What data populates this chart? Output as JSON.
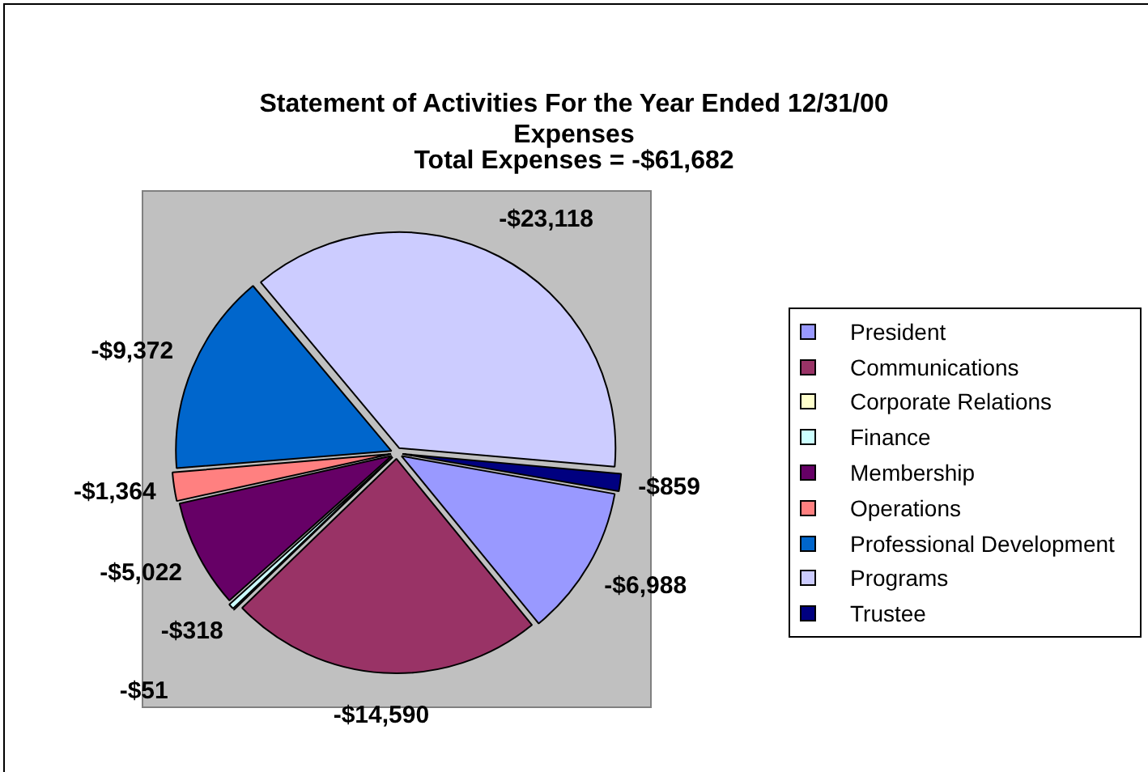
{
  "chart_data": {
    "type": "pie",
    "title": "Statement of Activities For the Year Ended 12/31/00",
    "subtitle": "Expenses",
    "annotations": [
      "Total Expenses = -$61,682",
      {
        "text": "-$6,988",
        "x": "President"
      },
      {
        "text": "-$14,590",
        "x": "Communications"
      },
      {
        "text": "-$51",
        "x": "Corporate Relations"
      },
      {
        "text": "-$318",
        "x": "Finance"
      },
      {
        "text": "-$5,022",
        "x": "Membership"
      },
      {
        "text": "-$1,364",
        "x": "Operations"
      },
      {
        "text": "-$9,372",
        "x": "Professional Development"
      },
      {
        "text": "-$23,118",
        "x": "Programs"
      },
      {
        "text": "-$859",
        "x": "Trustee"
      }
    ],
    "categories": [
      "President",
      "Communications",
      "Corporate Relations",
      "Finance",
      "Membership",
      "Operations",
      "Professional Development",
      "Programs",
      "Trustee"
    ],
    "values": [
      11.33,
      23.66,
      0.08,
      0.52,
      8.14,
      2.21,
      15.19,
      37.48,
      1.39
    ],
    "colors": [
      "#9999ff",
      "#993366",
      "#ffffcc",
      "#ccffff",
      "#660066",
      "#ff8080",
      "#0066cc",
      "#ccccff",
      "#000080"
    ],
    "legend": "right"
  }
}
